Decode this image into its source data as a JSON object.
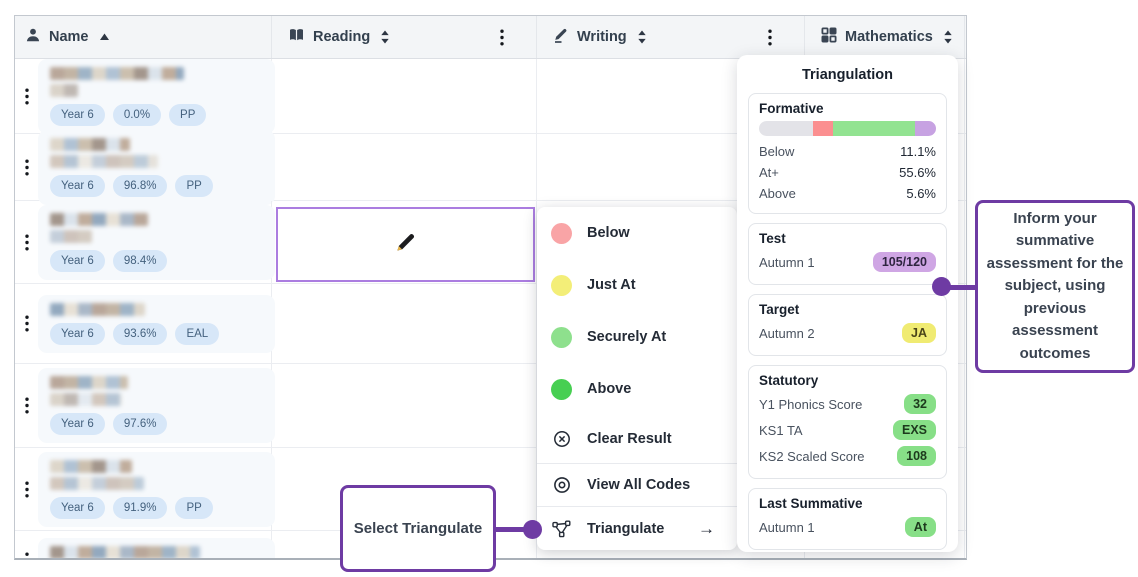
{
  "table": {
    "columns": [
      {
        "label": "Name",
        "icon": "person-icon",
        "sort": "asc",
        "kebab": false
      },
      {
        "label": "Reading",
        "icon": "book-icon",
        "sort": "both",
        "kebab": true
      },
      {
        "label": "Writing",
        "icon": "pencil-icon",
        "sort": "both",
        "kebab": true
      },
      {
        "label": "Mathematics",
        "icon": "grid-icon",
        "sort": "both",
        "kebab": false
      }
    ],
    "rows": [
      {
        "badges": [
          "Year 6",
          "0.0%",
          "PP"
        ],
        "blur": [
          134,
          28
        ]
      },
      {
        "badges": [
          "Year 6",
          "96.8%",
          "PP"
        ],
        "blur": [
          80,
          108
        ]
      },
      {
        "badges": [
          "Year 6",
          "98.4%"
        ],
        "blur": [
          98,
          42
        ]
      },
      {
        "badges": [
          "Year 6",
          "93.6%",
          "EAL"
        ],
        "blur": [
          95
        ]
      },
      {
        "badges": [
          "Year 6",
          "97.6%"
        ],
        "blur": [
          78,
          72
        ]
      },
      {
        "badges": [
          "Year 6",
          "91.9%",
          "PP"
        ],
        "blur": [
          82,
          94
        ]
      },
      {
        "badges": [],
        "blur": [
          150,
          146
        ]
      }
    ]
  },
  "selected_cell": {
    "icon": "pencil-emoji-icon"
  },
  "menu": {
    "items": [
      {
        "label": "Below",
        "type": "color",
        "color": "#f9a4a6"
      },
      {
        "label": "Just At",
        "type": "color",
        "color": "#f3ee78"
      },
      {
        "label": "Securely At",
        "type": "color",
        "color": "#8ee08d"
      },
      {
        "label": "Above",
        "type": "color",
        "color": "#47cf52"
      },
      {
        "label": "Clear Result",
        "type": "icon",
        "icon": "clear-circle-icon",
        "divider_after": true
      },
      {
        "label": "View All Codes",
        "type": "icon",
        "icon": "eye-icon",
        "divider_after": true
      },
      {
        "label": "Triangulate",
        "type": "icon",
        "icon": "triangulate-icon",
        "trailing": "→"
      }
    ]
  },
  "panel": {
    "title": "Triangulation",
    "formative": {
      "title": "Formative",
      "bar": [
        {
          "color": "#e3e3e8",
          "pct": 30.5
        },
        {
          "color": "#fb8f90",
          "pct": 11.5
        },
        {
          "color": "#92e391",
          "pct": 46
        },
        {
          "color": "#c7a2e2",
          "pct": 12
        }
      ],
      "stats": [
        {
          "label": "Below",
          "value": "11.1%"
        },
        {
          "label": "At+",
          "value": "55.6%"
        },
        {
          "label": "Above",
          "value": "5.6%"
        }
      ]
    },
    "sections": [
      {
        "title": "Test",
        "rows": [
          {
            "label": "Autumn 1",
            "badge": "105/120",
            "badge_color": "purple"
          }
        ]
      },
      {
        "title": "Target",
        "rows": [
          {
            "label": "Autumn 2",
            "badge": "JA",
            "badge_color": "yellow"
          }
        ]
      },
      {
        "title": "Statutory",
        "rows": [
          {
            "label": "Y1 Phonics Score",
            "badge": "32",
            "badge_color": "green"
          },
          {
            "label": "KS1 TA",
            "badge": "EXS",
            "badge_color": "green"
          },
          {
            "label": "KS2 Scaled Score",
            "badge": "108",
            "badge_color": "green"
          }
        ]
      },
      {
        "title": "Last Summative",
        "rows": [
          {
            "label": "Autumn 1",
            "badge": "At",
            "badge_color": "green"
          }
        ]
      }
    ]
  },
  "callouts": {
    "select_triangulate": "Select Triangulate",
    "inform": "Inform your summative assessment for the subject, using previous assessment outcomes"
  },
  "colors": {
    "annotation_purple": "#6e3ba3",
    "selected_cell_border": "#ab7de0",
    "pupil_badge_bg": "#d7e7f8",
    "below": "#f9a4a6",
    "just_at": "#f3ee78",
    "securely_at": "#8ee08d",
    "above": "#47cf52",
    "test_badge": "#cfa6e4",
    "target_badge": "#f0eb72",
    "statutory_badge": "#87df87"
  }
}
